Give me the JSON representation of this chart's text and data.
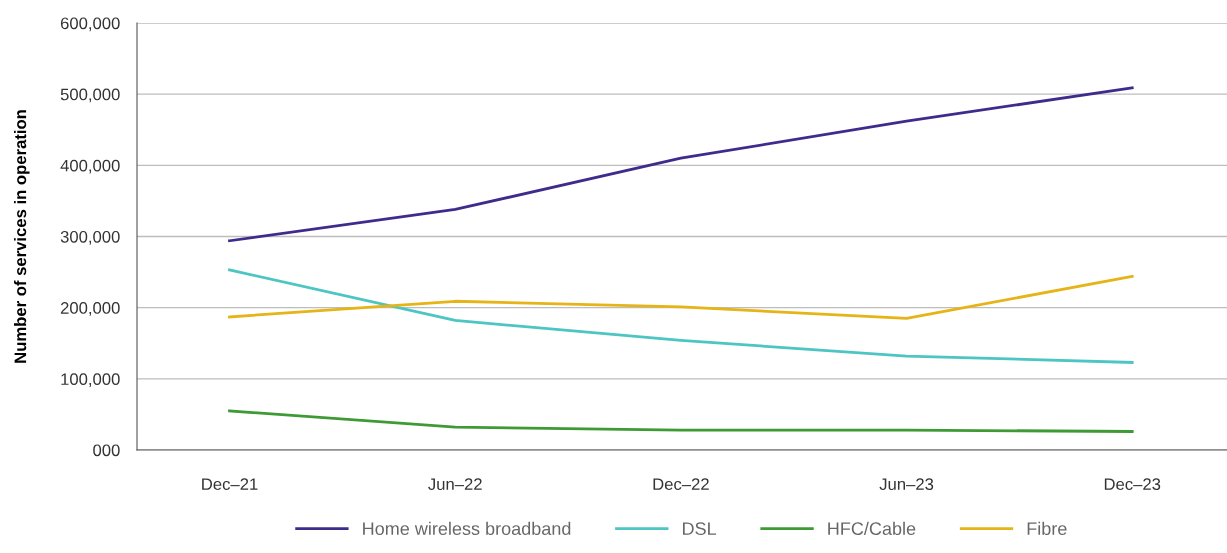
{
  "chart_data": {
    "type": "line",
    "ylabel": "Number of services in operation",
    "categories": [
      "Dec–21",
      "Jun–22",
      "Dec–22",
      "Jun–23",
      "Dec–23"
    ],
    "series": [
      {
        "name": "Home wireless broadband",
        "color": "#3f2b8c",
        "values": [
          294000,
          338000,
          410000,
          462000,
          509000
        ]
      },
      {
        "name": "DSL",
        "color": "#4cc5c3",
        "values": [
          253000,
          182000,
          154000,
          132000,
          123000
        ]
      },
      {
        "name": "HFC/Cable",
        "color": "#3e9a35",
        "values": [
          55000,
          32000,
          28000,
          28000,
          26000
        ]
      },
      {
        "name": "Fibre",
        "color": "#e6b416",
        "values": [
          187000,
          209000,
          201000,
          185000,
          244000
        ]
      }
    ],
    "ylim": [
      0,
      600000
    ],
    "yticks": [
      {
        "value": 0,
        "label": "000"
      },
      {
        "value": 100000,
        "label": "100,000"
      },
      {
        "value": 200000,
        "label": "200,000"
      },
      {
        "value": 300000,
        "label": "300,000"
      },
      {
        "value": 400000,
        "label": "400,000"
      },
      {
        "value": 500000,
        "label": "500,000"
      },
      {
        "value": 600000,
        "label": "600,000"
      }
    ],
    "grid": "y",
    "legend": "bottom",
    "marker": "none",
    "line_style": "solid"
  }
}
